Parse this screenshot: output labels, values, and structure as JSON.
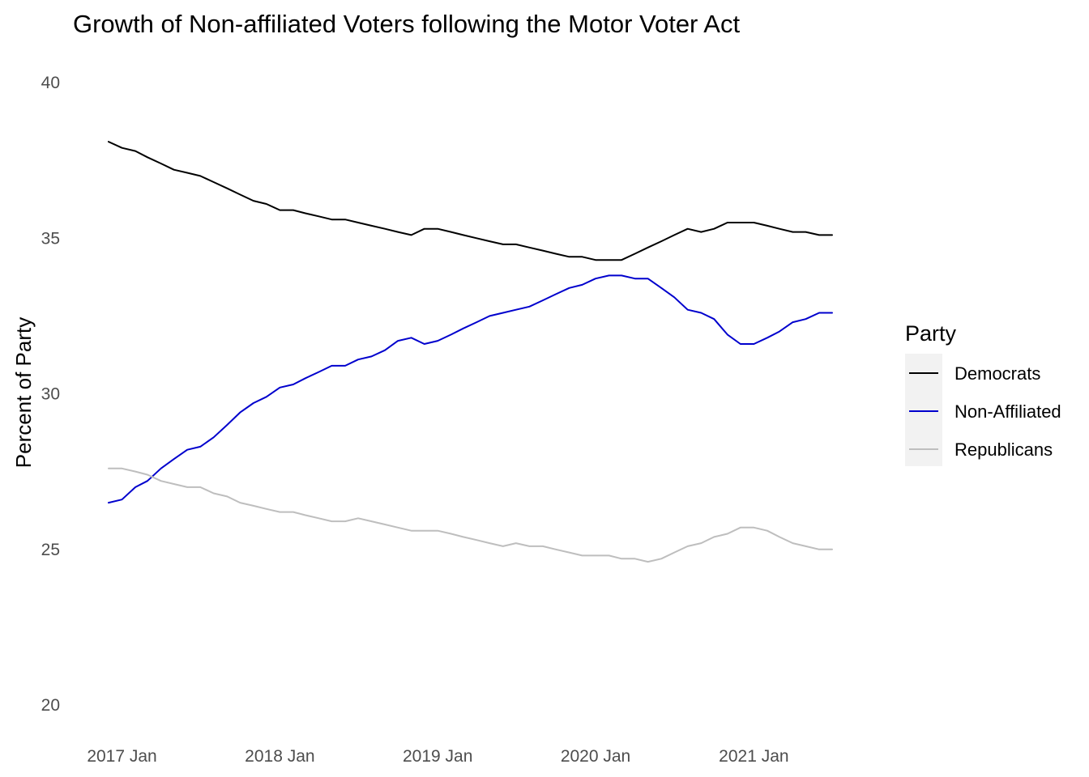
{
  "chart_data": {
    "type": "line",
    "title": "Growth of Non-affiliated Voters following the Motor Voter Act",
    "xlabel": "",
    "ylabel": "Percent of Party",
    "ylim": [
      20,
      40
    ],
    "yticks": [
      20,
      25,
      30,
      35,
      40
    ],
    "xlim": [
      "2016-12-01",
      "2021-07-01"
    ],
    "xticks": [
      {
        "date": "2017-01-01",
        "label": "2017 Jan"
      },
      {
        "date": "2018-01-01",
        "label": "2018 Jan"
      },
      {
        "date": "2019-01-01",
        "label": "2019 Jan"
      },
      {
        "date": "2020-01-01",
        "label": "2020 Jan"
      },
      {
        "date": "2021-01-01",
        "label": "2021 Jan"
      }
    ],
    "grid": false,
    "legend": {
      "title": "Party",
      "position": "right"
    },
    "series": [
      {
        "name": "Democrats",
        "color": "#000000",
        "points": [
          [
            "2016-12-01",
            38.1
          ],
          [
            "2017-01-01",
            37.9
          ],
          [
            "2017-02-01",
            37.8
          ],
          [
            "2017-03-01",
            37.6
          ],
          [
            "2017-04-01",
            37.4
          ],
          [
            "2017-05-01",
            37.2
          ],
          [
            "2017-06-01",
            37.1
          ],
          [
            "2017-07-01",
            37.0
          ],
          [
            "2017-08-01",
            36.8
          ],
          [
            "2017-09-01",
            36.6
          ],
          [
            "2017-10-01",
            36.4
          ],
          [
            "2017-11-01",
            36.2
          ],
          [
            "2017-12-01",
            36.1
          ],
          [
            "2018-01-01",
            35.9
          ],
          [
            "2018-02-01",
            35.9
          ],
          [
            "2018-03-01",
            35.8
          ],
          [
            "2018-04-01",
            35.7
          ],
          [
            "2018-05-01",
            35.6
          ],
          [
            "2018-06-01",
            35.6
          ],
          [
            "2018-07-01",
            35.5
          ],
          [
            "2018-08-01",
            35.4
          ],
          [
            "2018-09-01",
            35.3
          ],
          [
            "2018-10-01",
            35.2
          ],
          [
            "2018-11-01",
            35.1
          ],
          [
            "2018-12-01",
            35.3
          ],
          [
            "2019-01-01",
            35.3
          ],
          [
            "2019-02-01",
            35.2
          ],
          [
            "2019-03-01",
            35.1
          ],
          [
            "2019-04-01",
            35.0
          ],
          [
            "2019-05-01",
            34.9
          ],
          [
            "2019-06-01",
            34.8
          ],
          [
            "2019-07-01",
            34.8
          ],
          [
            "2019-08-01",
            34.7
          ],
          [
            "2019-09-01",
            34.6
          ],
          [
            "2019-10-01",
            34.5
          ],
          [
            "2019-11-01",
            34.4
          ],
          [
            "2019-12-01",
            34.4
          ],
          [
            "2020-01-01",
            34.3
          ],
          [
            "2020-02-01",
            34.3
          ],
          [
            "2020-03-01",
            34.3
          ],
          [
            "2020-04-01",
            34.5
          ],
          [
            "2020-05-01",
            34.7
          ],
          [
            "2020-06-01",
            34.9
          ],
          [
            "2020-07-01",
            35.1
          ],
          [
            "2020-08-01",
            35.3
          ],
          [
            "2020-09-01",
            35.2
          ],
          [
            "2020-10-01",
            35.3
          ],
          [
            "2020-11-01",
            35.5
          ],
          [
            "2020-12-01",
            35.5
          ],
          [
            "2021-01-01",
            35.5
          ],
          [
            "2021-02-01",
            35.4
          ],
          [
            "2021-03-01",
            35.3
          ],
          [
            "2021-04-01",
            35.2
          ],
          [
            "2021-05-01",
            35.2
          ],
          [
            "2021-06-01",
            35.1
          ],
          [
            "2021-07-01",
            35.1
          ]
        ]
      },
      {
        "name": "Non-Affiliated",
        "color": "#0000cd",
        "points": [
          [
            "2016-12-01",
            26.5
          ],
          [
            "2017-01-01",
            26.6
          ],
          [
            "2017-02-01",
            27.0
          ],
          [
            "2017-03-01",
            27.2
          ],
          [
            "2017-04-01",
            27.6
          ],
          [
            "2017-05-01",
            27.9
          ],
          [
            "2017-06-01",
            28.2
          ],
          [
            "2017-07-01",
            28.3
          ],
          [
            "2017-08-01",
            28.6
          ],
          [
            "2017-09-01",
            29.0
          ],
          [
            "2017-10-01",
            29.4
          ],
          [
            "2017-11-01",
            29.7
          ],
          [
            "2017-12-01",
            29.9
          ],
          [
            "2018-01-01",
            30.2
          ],
          [
            "2018-02-01",
            30.3
          ],
          [
            "2018-03-01",
            30.5
          ],
          [
            "2018-04-01",
            30.7
          ],
          [
            "2018-05-01",
            30.9
          ],
          [
            "2018-06-01",
            30.9
          ],
          [
            "2018-07-01",
            31.1
          ],
          [
            "2018-08-01",
            31.2
          ],
          [
            "2018-09-01",
            31.4
          ],
          [
            "2018-10-01",
            31.7
          ],
          [
            "2018-11-01",
            31.8
          ],
          [
            "2018-12-01",
            31.6
          ],
          [
            "2019-01-01",
            31.7
          ],
          [
            "2019-02-01",
            31.9
          ],
          [
            "2019-03-01",
            32.1
          ],
          [
            "2019-04-01",
            32.3
          ],
          [
            "2019-05-01",
            32.5
          ],
          [
            "2019-06-01",
            32.6
          ],
          [
            "2019-07-01",
            32.7
          ],
          [
            "2019-08-01",
            32.8
          ],
          [
            "2019-09-01",
            33.0
          ],
          [
            "2019-10-01",
            33.2
          ],
          [
            "2019-11-01",
            33.4
          ],
          [
            "2019-12-01",
            33.5
          ],
          [
            "2020-01-01",
            33.7
          ],
          [
            "2020-02-01",
            33.8
          ],
          [
            "2020-03-01",
            33.8
          ],
          [
            "2020-04-01",
            33.7
          ],
          [
            "2020-05-01",
            33.7
          ],
          [
            "2020-06-01",
            33.4
          ],
          [
            "2020-07-01",
            33.1
          ],
          [
            "2020-08-01",
            32.7
          ],
          [
            "2020-09-01",
            32.6
          ],
          [
            "2020-10-01",
            32.4
          ],
          [
            "2020-11-01",
            31.9
          ],
          [
            "2020-12-01",
            31.6
          ],
          [
            "2021-01-01",
            31.6
          ],
          [
            "2021-02-01",
            31.8
          ],
          [
            "2021-03-01",
            32.0
          ],
          [
            "2021-04-01",
            32.3
          ],
          [
            "2021-05-01",
            32.4
          ],
          [
            "2021-06-01",
            32.6
          ],
          [
            "2021-07-01",
            32.6
          ]
        ]
      },
      {
        "name": "Republicans",
        "color": "#bebebe",
        "points": [
          [
            "2016-12-01",
            27.6
          ],
          [
            "2017-01-01",
            27.6
          ],
          [
            "2017-02-01",
            27.5
          ],
          [
            "2017-03-01",
            27.4
          ],
          [
            "2017-04-01",
            27.2
          ],
          [
            "2017-05-01",
            27.1
          ],
          [
            "2017-06-01",
            27.0
          ],
          [
            "2017-07-01",
            27.0
          ],
          [
            "2017-08-01",
            26.8
          ],
          [
            "2017-09-01",
            26.7
          ],
          [
            "2017-10-01",
            26.5
          ],
          [
            "2017-11-01",
            26.4
          ],
          [
            "2017-12-01",
            26.3
          ],
          [
            "2018-01-01",
            26.2
          ],
          [
            "2018-02-01",
            26.2
          ],
          [
            "2018-03-01",
            26.1
          ],
          [
            "2018-04-01",
            26.0
          ],
          [
            "2018-05-01",
            25.9
          ],
          [
            "2018-06-01",
            25.9
          ],
          [
            "2018-07-01",
            26.0
          ],
          [
            "2018-08-01",
            25.9
          ],
          [
            "2018-09-01",
            25.8
          ],
          [
            "2018-10-01",
            25.7
          ],
          [
            "2018-11-01",
            25.6
          ],
          [
            "2018-12-01",
            25.6
          ],
          [
            "2019-01-01",
            25.6
          ],
          [
            "2019-02-01",
            25.5
          ],
          [
            "2019-03-01",
            25.4
          ],
          [
            "2019-04-01",
            25.3
          ],
          [
            "2019-05-01",
            25.2
          ],
          [
            "2019-06-01",
            25.1
          ],
          [
            "2019-07-01",
            25.2
          ],
          [
            "2019-08-01",
            25.1
          ],
          [
            "2019-09-01",
            25.1
          ],
          [
            "2019-10-01",
            25.0
          ],
          [
            "2019-11-01",
            24.9
          ],
          [
            "2019-12-01",
            24.8
          ],
          [
            "2020-01-01",
            24.8
          ],
          [
            "2020-02-01",
            24.8
          ],
          [
            "2020-03-01",
            24.7
          ],
          [
            "2020-04-01",
            24.7
          ],
          [
            "2020-05-01",
            24.6
          ],
          [
            "2020-06-01",
            24.7
          ],
          [
            "2020-07-01",
            24.9
          ],
          [
            "2020-08-01",
            25.1
          ],
          [
            "2020-09-01",
            25.2
          ],
          [
            "2020-10-01",
            25.4
          ],
          [
            "2020-11-01",
            25.5
          ],
          [
            "2020-12-01",
            25.7
          ],
          [
            "2021-01-01",
            25.7
          ],
          [
            "2021-02-01",
            25.6
          ],
          [
            "2021-03-01",
            25.4
          ],
          [
            "2021-04-01",
            25.2
          ],
          [
            "2021-05-01",
            25.1
          ],
          [
            "2021-06-01",
            25.0
          ],
          [
            "2021-07-01",
            25.0
          ]
        ]
      }
    ]
  }
}
